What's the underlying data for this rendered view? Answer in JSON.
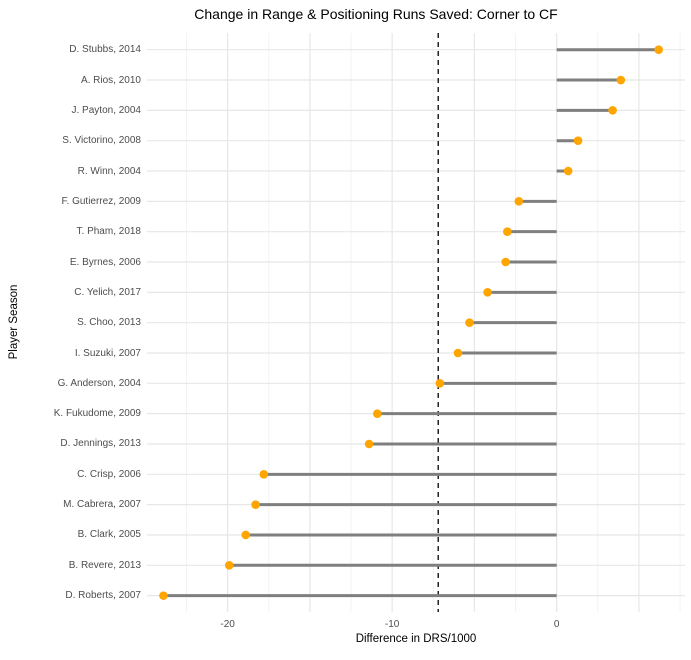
{
  "title": "Change in Range & Positioning Runs Saved: Corner to CF",
  "chart_data": {
    "type": "lollipop",
    "orientation": "horizontal",
    "title": "Change in Range & Positioning Runs Saved: Corner to CF",
    "xlabel": "Difference in DRS/1000",
    "ylabel": "Player Season",
    "xlim": [
      -24.9,
      7.8
    ],
    "x_ticks": [
      -20,
      -10,
      0
    ],
    "grid_major_x": [
      -25,
      -20,
      -15,
      -10,
      -5,
      0,
      5
    ],
    "grid_minor_x": [
      -22.5,
      -17.5,
      -12.5,
      -7.5,
      -2.5,
      2.5,
      7.5
    ],
    "baseline_x": 0,
    "reference_line": {
      "x": -7.2,
      "style": "dashed",
      "color": "#000000"
    },
    "categories": [
      "D. Stubbs, 2014",
      "A. Rios, 2010",
      "J. Payton, 2004",
      "S. Victorino, 2008",
      "R. Winn, 2004",
      "F. Gutierrez, 2009",
      "T. Pham, 2018",
      "E. Byrnes, 2006",
      "C. Yelich, 2017",
      "S. Choo, 2013",
      "I. Suzuki, 2007",
      "G. Anderson, 2004",
      "K. Fukudome, 2009",
      "D. Jennings, 2013",
      "C. Crisp, 2006",
      "M. Cabrera, 2007",
      "B. Clark, 2005",
      "B. Revere, 2013",
      "D. Roberts, 2007"
    ],
    "values": [
      6.2,
      3.9,
      3.4,
      1.3,
      0.7,
      -2.3,
      -3.0,
      -3.1,
      -4.2,
      -5.3,
      -6.0,
      -7.1,
      -10.9,
      -11.4,
      -17.8,
      -18.3,
      -18.9,
      -19.9,
      -23.9
    ],
    "colors": {
      "point": "#FFA500",
      "segment": "#7F7F7F",
      "grid_major": "#E7E7E7",
      "grid_minor": "#F3F3F3",
      "tick_label": "#4D4D4D",
      "axis_title": "#000000",
      "title": "#000000",
      "background": "#FFFFFF"
    },
    "legend": null
  }
}
